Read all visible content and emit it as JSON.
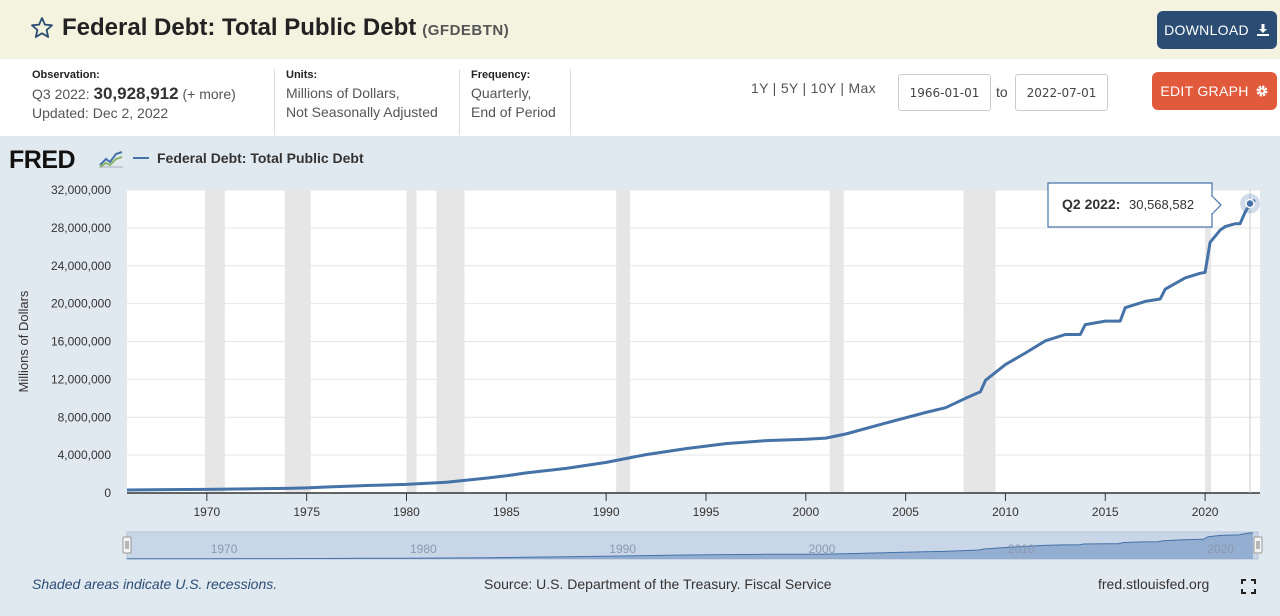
{
  "header": {
    "title": "Federal Debt: Total Public Debt",
    "series_code": "(GFDEBTN)",
    "download_label": "DOWNLOAD"
  },
  "info": {
    "observation_label": "Observation:",
    "observation_period": "Q3 2022:",
    "observation_value": "30,928,912",
    "observation_more": "(+ more)",
    "updated": "Updated: Dec 2, 2022",
    "units_label": "Units:",
    "units_line1": "Millions of Dollars,",
    "units_line2": "Not Seasonally Adjusted",
    "frequency_label": "Frequency:",
    "frequency_line1": "Quarterly,",
    "frequency_line2": "End of Period"
  },
  "controls": {
    "range_1y": "1Y",
    "range_5y": "5Y",
    "range_10y": "10Y",
    "range_max": "Max",
    "start_date": "1966-01-01",
    "to_label": "to",
    "end_date": "2022-07-01",
    "edit_label": "EDIT GRAPH"
  },
  "footer": {
    "recession_note": "Shaded areas indicate U.S. recessions.",
    "source": "Source: U.S. Department of the Treasury. Fiscal Service",
    "site": "fred.stlouisfed.org"
  },
  "branding": {
    "logo_text": "FRED"
  },
  "colors": {
    "line": "#4572a7",
    "recession": "#e6e6e6",
    "accent_download": "#2b4d73",
    "accent_edit": "#e15a3c"
  },
  "chart_data": {
    "type": "line",
    "legend_label": "Federal Debt: Total Public Debt",
    "ylabel": "Millions of Dollars",
    "xlim": [
      1966.0,
      2022.75
    ],
    "ylim": [
      0,
      32000000
    ],
    "y_ticks": [
      0,
      4000000,
      8000000,
      12000000,
      16000000,
      20000000,
      24000000,
      28000000,
      32000000
    ],
    "y_tick_labels": [
      "0",
      "4,000,000",
      "8,000,000",
      "12,000,000",
      "16,000,000",
      "20,000,000",
      "24,000,000",
      "28,000,000",
      "32,000,000"
    ],
    "x_ticks": [
      1970,
      1975,
      1980,
      1985,
      1990,
      1995,
      2000,
      2005,
      2010,
      2015,
      2020
    ],
    "x_tick_labels": [
      "1970",
      "1975",
      "1980",
      "1985",
      "1990",
      "1995",
      "2000",
      "2005",
      "2010",
      "2015",
      "2020"
    ],
    "navigator_labels": [
      "1970",
      "1980",
      "1990",
      "2000",
      "2010",
      "2020"
    ],
    "recessions": [
      [
        1969.9,
        1970.9
      ],
      [
        1973.9,
        1975.2
      ],
      [
        1980.0,
        1980.5
      ],
      [
        1981.5,
        1982.9
      ],
      [
        1990.5,
        1991.2
      ],
      [
        2001.2,
        2001.9
      ],
      [
        2007.9,
        2009.5
      ],
      [
        2020.0,
        2020.3
      ]
    ],
    "series": [
      {
        "name": "Federal Debt: Total Public Debt",
        "x": [
          1966.0,
          1968,
          1970,
          1972,
          1974,
          1975,
          1976,
          1978,
          1980,
          1982,
          1984,
          1985,
          1986,
          1988,
          1990,
          1992,
          1994,
          1996,
          1998,
          2000,
          2001,
          2002,
          2004,
          2006,
          2007,
          2008,
          2008.75,
          2009,
          2010,
          2011,
          2012,
          2013,
          2013.75,
          2014,
          2015,
          2015.75,
          2016,
          2017,
          2017.75,
          2018,
          2019,
          2019.75,
          2020.0,
          2020.25,
          2020.75,
          2021,
          2021.5,
          2021.75,
          2022.0,
          2022.25,
          2022.5
        ],
        "y": [
          320000,
          360000,
          380000,
          430000,
          490000,
          540000,
          630000,
          790000,
          910000,
          1140000,
          1570000,
          1820000,
          2120000,
          2600000,
          3230000,
          4060000,
          4690000,
          5220000,
          5530000,
          5670000,
          5800000,
          6230000,
          7380000,
          8500000,
          9010000,
          10000000,
          10700000,
          11900000,
          13560000,
          14790000,
          16070000,
          16740000,
          16740000,
          17790000,
          18150000,
          18150000,
          19570000,
          20240000,
          20490000,
          21520000,
          22720000,
          23200000,
          23300000,
          26480000,
          27750000,
          28130000,
          28430000,
          28430000,
          29620000,
          30568582,
          30928912
        ]
      }
    ],
    "tooltip": {
      "period": "Q2 2022:",
      "value": "30,568,582"
    }
  }
}
